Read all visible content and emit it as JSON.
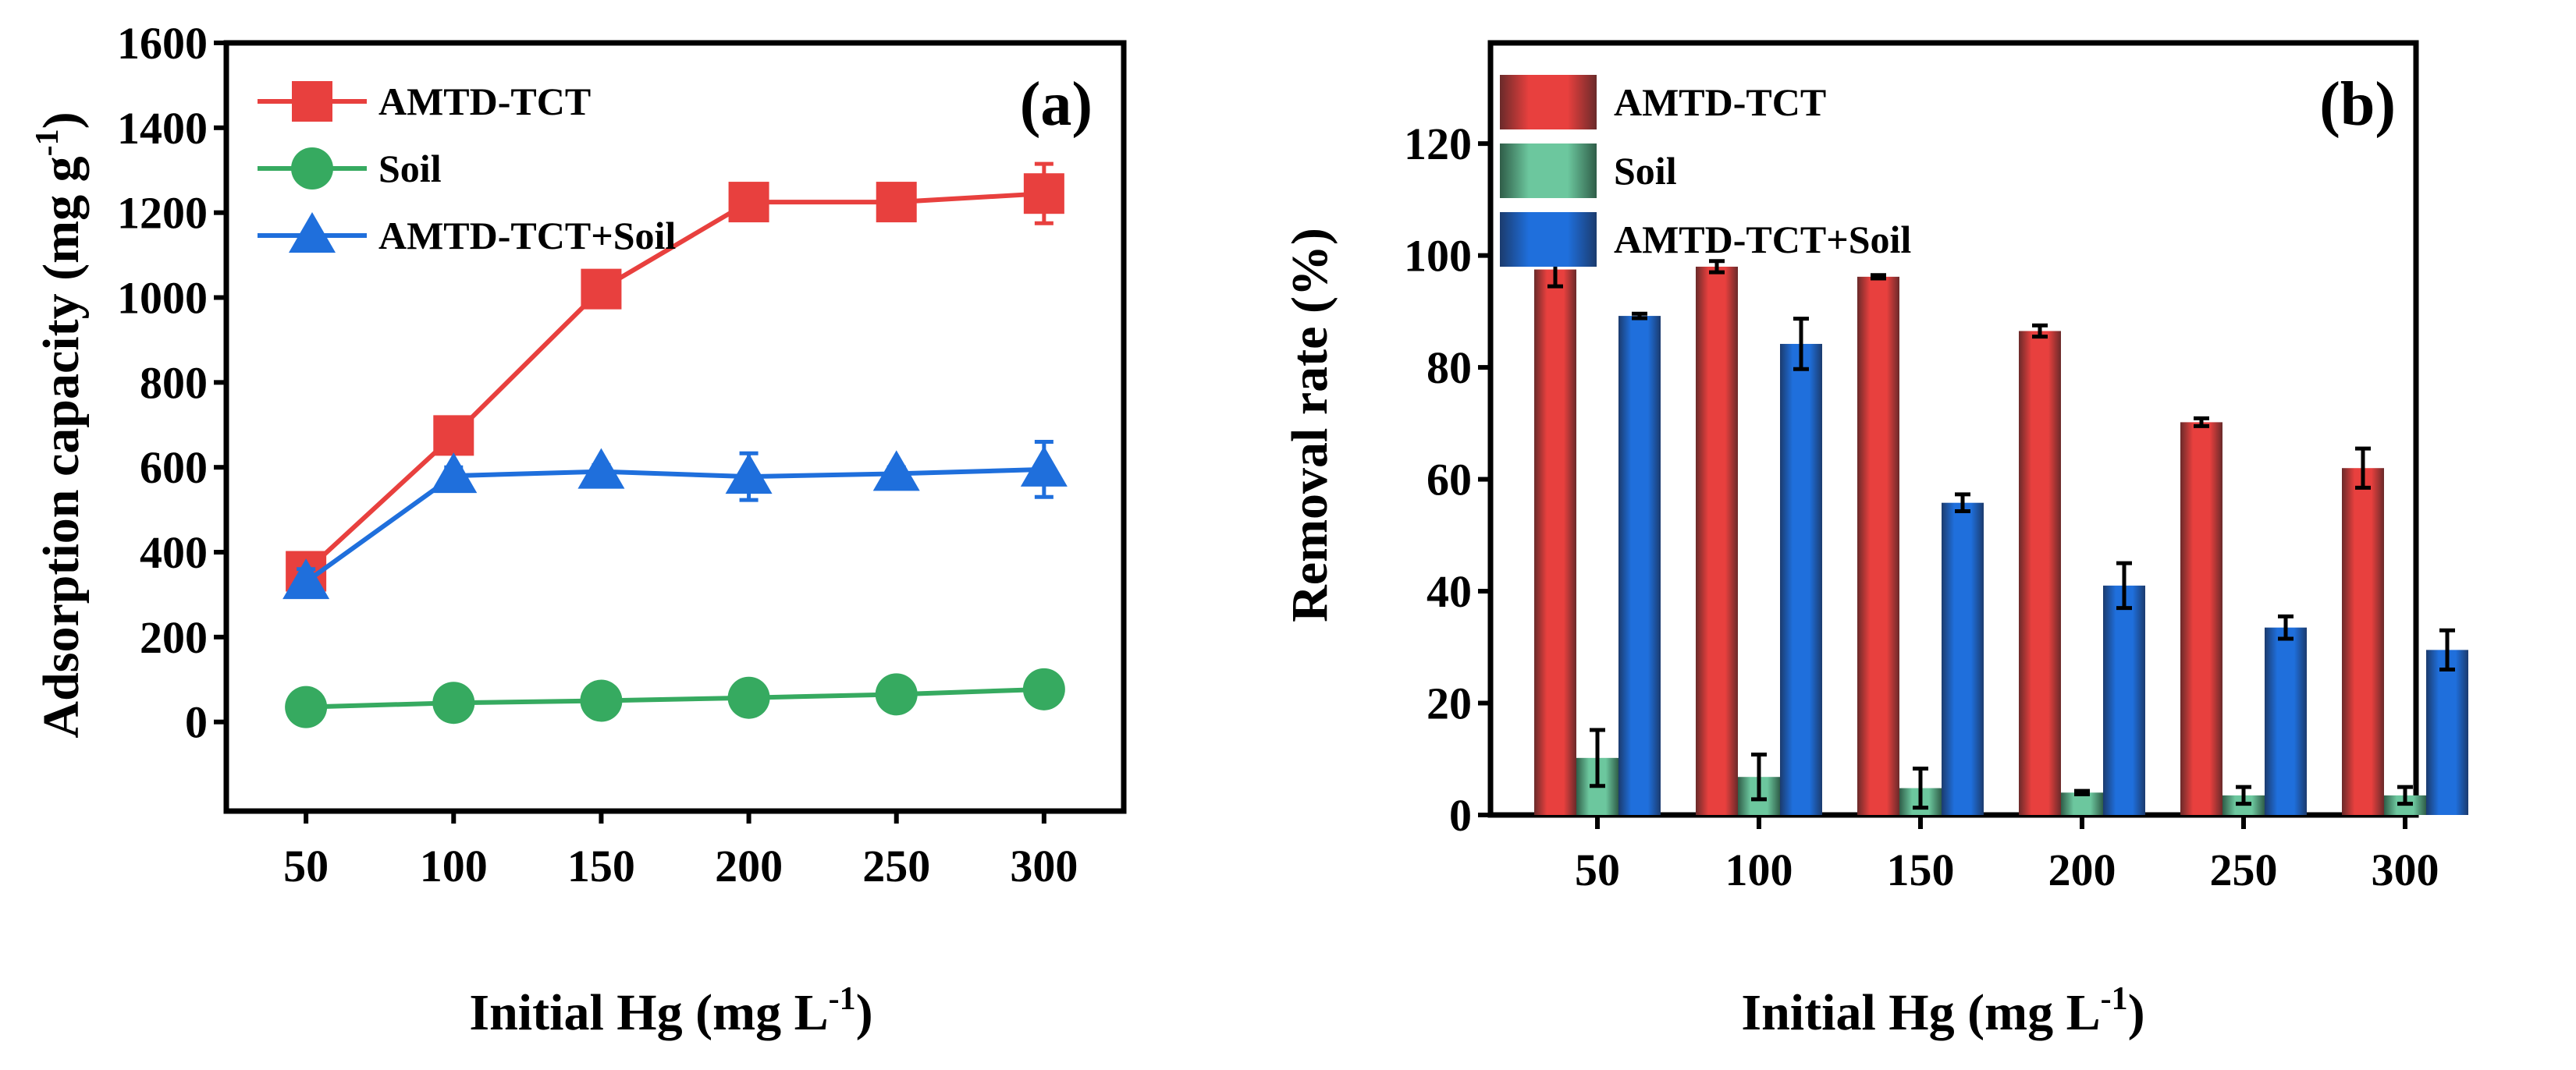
{
  "chart_data": [
    {
      "type": "line",
      "panel_label": "(a)",
      "xlabel": "Initial Hg (mg L",
      "xlabel_sup": "-1",
      "xlabel_end": ")",
      "ylabel": "Adsorption capacity (mg g",
      "ylabel_sup": "-1",
      "ylabel_end": ")",
      "x": [
        50,
        100,
        150,
        200,
        250,
        300
      ],
      "xticks": [
        "50",
        "100",
        "150",
        "200",
        "250",
        "300"
      ],
      "yticks": [
        "0",
        "200",
        "400",
        "600",
        "800",
        "1000",
        "1200",
        "1400",
        "1600"
      ],
      "ytick_values": [
        0,
        200,
        400,
        600,
        800,
        1000,
        1200,
        1400,
        1600
      ],
      "xlim": [
        23,
        327
      ],
      "ylim": [
        -210,
        1600
      ],
      "legend": "top-left",
      "series": [
        {
          "name": "AMTD-TCT",
          "color": "#e8403e",
          "marker": "square",
          "values": [
            355,
            675,
            1020,
            1225,
            1225,
            1245
          ],
          "errors": [
            20,
            20,
            20,
            20,
            20,
            70
          ]
        },
        {
          "name": "Soil",
          "color": "#36aa60",
          "marker": "circle",
          "values": [
            35,
            45,
            50,
            57,
            65,
            77
          ],
          "errors": [
            5,
            5,
            5,
            5,
            5,
            5
          ]
        },
        {
          "name": "AMTD-TCT+Soil",
          "color": "#1f6fdc",
          "marker": "triangle",
          "values": [
            330,
            580,
            590,
            578,
            585,
            595
          ],
          "errors": [
            30,
            20,
            15,
            55,
            15,
            65
          ]
        }
      ]
    },
    {
      "type": "bar",
      "panel_label": "(b)",
      "xlabel": "Initial Hg (mg L",
      "xlabel_sup": "-1",
      "xlabel_end": ")",
      "ylabel": "Removal rate (%)",
      "categories": [
        "50",
        "100",
        "150",
        "200",
        "250",
        "300"
      ],
      "yticks": [
        "0",
        "20",
        "40",
        "60",
        "80",
        "100",
        "120"
      ],
      "ytick_values": [
        0,
        20,
        40,
        60,
        80,
        100,
        120
      ],
      "ylim": [
        0,
        138
      ],
      "legend": "top-left",
      "series": [
        {
          "name": "AMTD-TCT",
          "color": "#e8403e",
          "values": [
            97.5,
            98,
            96.2,
            86.5,
            70.2,
            62
          ],
          "errors": [
            3,
            1,
            0.3,
            1,
            0.7,
            3.5
          ]
        },
        {
          "name": "Soil",
          "color": "#6cc79e",
          "values": [
            10.2,
            6.8,
            4.8,
            4,
            3.5,
            3.5
          ],
          "errors": [
            5,
            4,
            3.5,
            0.3,
            1.5,
            1.5
          ]
        },
        {
          "name": "AMTD-TCT+Soil",
          "color": "#1f6fdc",
          "values": [
            89.2,
            84.2,
            55.8,
            41,
            33.5,
            29.5
          ],
          "errors": [
            0.4,
            4.5,
            1.5,
            4,
            2,
            3.5
          ]
        }
      ]
    }
  ]
}
